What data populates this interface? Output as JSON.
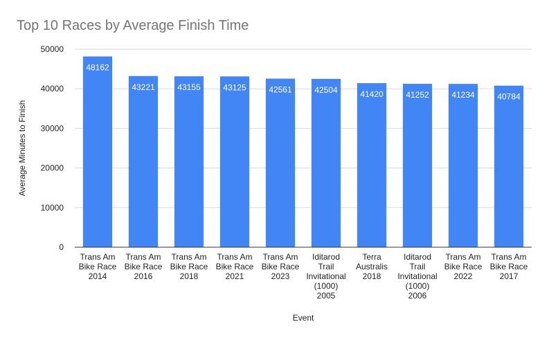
{
  "chart_data": {
    "type": "bar",
    "title": "Top 10 Races by Average Finish Time",
    "xlabel": "Event",
    "ylabel": "Average Minutes to Finish",
    "categories": [
      [
        "Trans Am",
        "Bike Race",
        "2014"
      ],
      [
        "Trans Am",
        "Bike Race",
        "2016"
      ],
      [
        "Trans Am",
        "Bike Race",
        "2018"
      ],
      [
        "Trans Am",
        "Bike Race",
        "2021"
      ],
      [
        "Trans Am",
        "Bike Race",
        "2023"
      ],
      [
        "Iditarod",
        "Trail",
        "Invitational",
        "(1000)",
        "2005"
      ],
      [
        "Terra",
        "Australis",
        "2018"
      ],
      [
        "Iditarod",
        "Trail",
        "Invitational",
        "(1000)",
        "2006"
      ],
      [
        "Trans Am",
        "Bike Race",
        "2022"
      ],
      [
        "Trans Am",
        "Bike Race",
        "2017"
      ]
    ],
    "values": [
      48162,
      43221,
      43155,
      43125,
      42561,
      42504,
      41420,
      41252,
      41234,
      40784
    ],
    "ylim": [
      0,
      50000
    ],
    "yticks": [
      0,
      10000,
      20000,
      30000,
      40000,
      50000
    ],
    "grid": true,
    "legend": "none",
    "colors": {
      "bar": "#4285f4",
      "grid": "#d9d9d9",
      "axis": "#333333",
      "title": "#757575"
    }
  }
}
